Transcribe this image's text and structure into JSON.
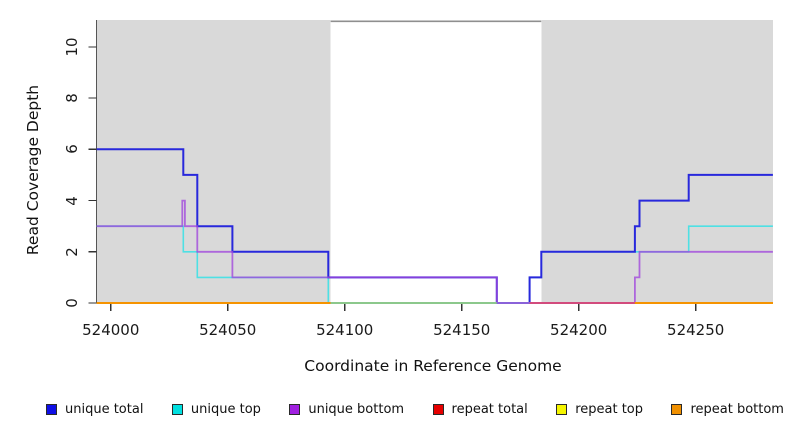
{
  "chart_data": {
    "type": "line",
    "subtype": "step-coverage",
    "title": "",
    "xlabel": "Coordinate in Reference Genome",
    "ylabel": "Read Coverage Depth",
    "xlim": [
      523994,
      524283
    ],
    "ylim": [
      0,
      11.05
    ],
    "x_ticks": [
      524000,
      524050,
      524100,
      524150,
      524200,
      524250
    ],
    "y_ticks": [
      0,
      2,
      4,
      6,
      8,
      10
    ],
    "grid": false,
    "legend_position": "bottom",
    "shaded_regions": [
      {
        "name": "left-shaded-region",
        "x0": 523994,
        "x1": 524094,
        "color": "#d9d9d9"
      },
      {
        "name": "right-shaded-region",
        "x0": 524184,
        "x1": 524283,
        "color": "#d9d9d9"
      }
    ],
    "top_boundary_line": {
      "y": 11,
      "x0": 524094,
      "x1": 524184,
      "color": "#8f8f8f"
    },
    "series": [
      {
        "name": "unique total",
        "legend_color": "#0f0fe6",
        "plot_color": "#2828dc",
        "width": 2,
        "visible": true,
        "steps": [
          [
            523994,
            6
          ],
          [
            524031,
            5
          ],
          [
            524037,
            3
          ],
          [
            524052,
            2
          ],
          [
            524093,
            1
          ],
          [
            524165,
            0
          ],
          [
            524179,
            1
          ],
          [
            524184,
            2
          ],
          [
            524224,
            3
          ],
          [
            524226,
            4
          ],
          [
            524247,
            5
          ],
          [
            524283,
            5
          ]
        ]
      },
      {
        "name": "unique top",
        "legend_color": "#00e0e0",
        "plot_color": "#4ee0e4",
        "width": 1.6,
        "visible": true,
        "steps": [
          [
            523994,
            3
          ],
          [
            524031,
            2
          ],
          [
            524037,
            1
          ],
          [
            524093,
            0
          ],
          [
            524179,
            1
          ],
          [
            524184,
            2
          ],
          [
            524247,
            3
          ],
          [
            524283,
            3
          ]
        ]
      },
      {
        "name": "unique bottom",
        "legend_color": "#a020e0",
        "plot_color": "rgba(160,70,220,0.78)",
        "width": 1.8,
        "visible": true,
        "steps": [
          [
            523994,
            3
          ],
          [
            524030.6,
            4
          ],
          [
            524031.7,
            3
          ],
          [
            524037,
            2
          ],
          [
            524052,
            1
          ],
          [
            524165,
            0
          ],
          [
            524224,
            1
          ],
          [
            524226,
            2
          ],
          [
            524283,
            2
          ]
        ]
      },
      {
        "name": "repeat total",
        "legend_color": "#e60000",
        "plot_color": "#e60000",
        "width": 1.6,
        "visible": false,
        "steps": [
          [
            523994,
            0
          ],
          [
            524283,
            0
          ]
        ]
      },
      {
        "name": "repeat top",
        "legend_color": "#f5f500",
        "plot_color": "#f5f500",
        "width": 1.6,
        "visible": false,
        "steps": [
          [
            523994,
            0
          ],
          [
            524283,
            0
          ]
        ]
      },
      {
        "name": "repeat bottom",
        "legend_color": "#f09000",
        "plot_color": "#f59300",
        "width": 2,
        "visible": true,
        "steps": [
          [
            523994,
            0
          ],
          [
            524283,
            0
          ]
        ]
      }
    ],
    "draw_order": [
      5,
      1,
      0,
      2
    ],
    "baseline_overlay_segments": [
      {
        "x0": 523994,
        "x1": 524094,
        "color": "#f59300"
      },
      {
        "x0": 524094,
        "x1": 524165,
        "color": "#8cc88c"
      },
      {
        "x0": 524165,
        "x1": 524179,
        "color": "#8a62d9"
      },
      {
        "x0": 524179,
        "x1": 524224,
        "color": "#d24b7d"
      },
      {
        "x0": 524224,
        "x1": 524283,
        "color": "#f59300"
      }
    ],
    "axis_color": "#555555",
    "tick_color": "#333333"
  }
}
